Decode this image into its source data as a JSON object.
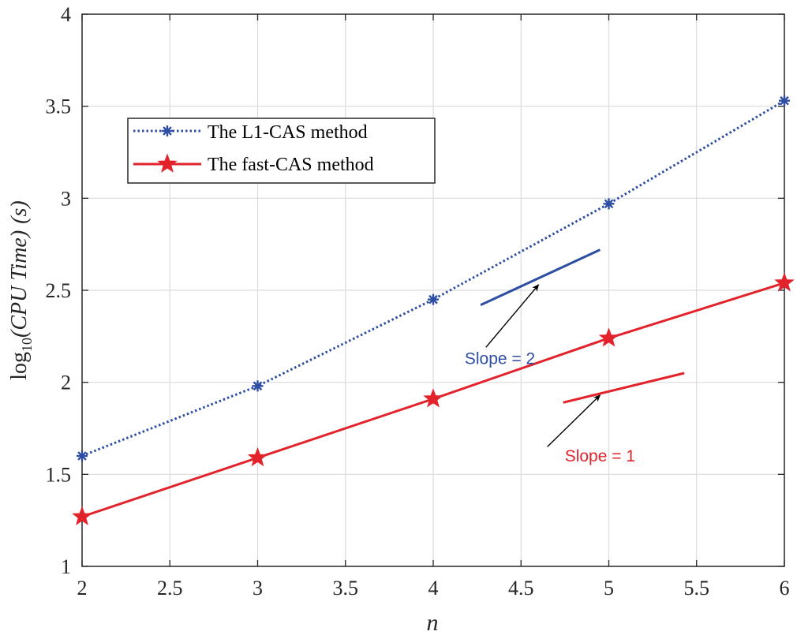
{
  "chart_data": {
    "type": "line",
    "title": "",
    "xlabel": "n",
    "ylabel": {
      "prefix": "log",
      "subscript": "10",
      "main": "(CPU Time)",
      "unit": "(s)"
    },
    "xlim": [
      2,
      6
    ],
    "ylim": [
      1,
      4
    ],
    "grid": true,
    "x_ticks": [
      2,
      2.5,
      3,
      3.5,
      4,
      4.5,
      5,
      5.5,
      6
    ],
    "x_tick_labels": [
      "2",
      "2.5",
      "3",
      "3.5",
      "4",
      "4.5",
      "5",
      "5.5",
      "6"
    ],
    "y_ticks": [
      1,
      1.5,
      2,
      2.5,
      3,
      3.5,
      4
    ],
    "y_tick_labels": [
      "1",
      "1.5",
      "2",
      "2.5",
      "3",
      "3.5",
      "4"
    ],
    "legend_position": "upper-left",
    "series": [
      {
        "name": "The L1-CAS method",
        "color": "#2e4ea3",
        "line_style": "dotted",
        "marker": "asterisk",
        "x": [
          2,
          3,
          4,
          5,
          6
        ],
        "values": [
          1.6,
          1.98,
          2.45,
          2.97,
          3.53
        ]
      },
      {
        "name": "The fast-CAS method",
        "color": "#e3232c",
        "line_style": "solid",
        "marker": "star",
        "x": [
          2,
          3,
          4,
          5,
          6
        ],
        "values": [
          1.27,
          1.59,
          1.91,
          2.24,
          2.54
        ]
      }
    ],
    "annotations": [
      {
        "text": "Slope = 2",
        "color": "#2e4ea3",
        "text_at": [
          4.38,
          2.13
        ],
        "segment": [
          [
            4.27,
            2.42
          ],
          [
            4.95,
            2.72
          ]
        ],
        "arrow_from": [
          4.3,
          2.19
        ],
        "arrow_to": [
          4.6,
          2.53
        ]
      },
      {
        "text": "Slope = 1",
        "color": "#e3232c",
        "text_at": [
          4.95,
          1.6
        ],
        "segment": [
          [
            4.74,
            1.89
          ],
          [
            5.43,
            2.05
          ]
        ],
        "arrow_from": [
          4.65,
          1.65
        ],
        "arrow_to": [
          4.95,
          1.93
        ]
      }
    ]
  }
}
